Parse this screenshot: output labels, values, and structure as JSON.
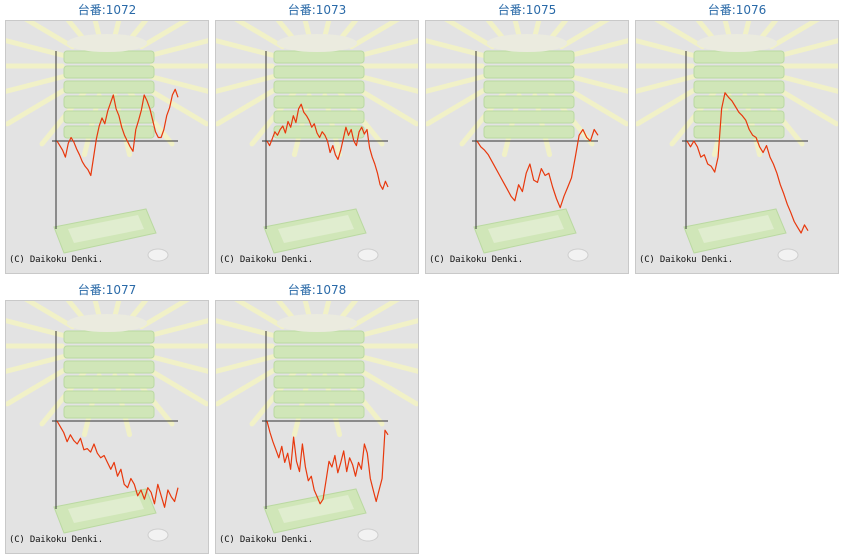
{
  "colors": {
    "title": "#2a6aa8",
    "line": "#e8380d",
    "axis": "#333333",
    "background": "#e3e3e3"
  },
  "chart_data": [
    {
      "type": "line",
      "title": "台番:1072",
      "footer": "(C) Daikoku Denki.",
      "values": [
        0,
        -4,
        -8,
        -14,
        -2,
        3,
        -1,
        -7,
        -12,
        -18,
        -22,
        -25,
        -30,
        -14,
        2,
        13,
        20,
        15,
        26,
        33,
        40,
        28,
        22,
        12,
        5,
        0,
        -5,
        -9,
        10,
        18,
        27,
        40,
        35,
        28,
        18,
        8,
        3,
        3,
        10,
        22,
        29,
        40,
        45,
        38
      ]
    },
    {
      "type": "line",
      "title": "台番:1073",
      "footer": "(C) Daikoku Denki.",
      "values": [
        0,
        -4,
        2,
        8,
        5,
        10,
        13,
        7,
        17,
        12,
        22,
        16,
        28,
        32,
        25,
        22,
        18,
        12,
        15,
        7,
        3,
        8,
        5,
        0,
        -10,
        -4,
        -12,
        -16,
        -8,
        2,
        12,
        5,
        10,
        0,
        -4,
        8,
        12,
        6,
        10,
        -6,
        -14,
        -20,
        -28,
        -38,
        -42,
        -35,
        -40
      ]
    },
    {
      "type": "line",
      "title": "台番:1075",
      "footer": "(C) Daikoku Denki.",
      "values": [
        0,
        -5,
        -8,
        -12,
        -18,
        -24,
        -30,
        -36,
        -42,
        -48,
        -52,
        -38,
        -44,
        -28,
        -20,
        -34,
        -36,
        -24,
        -30,
        -28,
        -40,
        -50,
        -58,
        -48,
        -40,
        -32,
        -14,
        5,
        10,
        3,
        0,
        10,
        5
      ]
    },
    {
      "type": "line",
      "title": "台番:1076",
      "footer": "(C) Daikoku Denki.",
      "values": [
        0,
        -5,
        0,
        -5,
        -14,
        -12,
        -20,
        -22,
        -27,
        -14,
        28,
        42,
        38,
        35,
        30,
        25,
        22,
        18,
        10,
        5,
        3,
        -5,
        -10,
        -4,
        -14,
        -20,
        -28,
        -38,
        -46,
        -55,
        -62,
        -70,
        -75,
        -80,
        -73,
        -78
      ]
    },
    {
      "type": "line",
      "title": "台番:1077",
      "footer": "(C) Daikoku Denki.",
      "values": [
        0,
        -5,
        -10,
        -18,
        -12,
        -17,
        -20,
        -15,
        -25,
        -24,
        -27,
        -20,
        -28,
        -32,
        -30,
        -36,
        -42,
        -36,
        -48,
        -42,
        -55,
        -58,
        -50,
        -55,
        -65,
        -60,
        -68,
        -58,
        -62,
        -72,
        -55,
        -65,
        -75,
        -60,
        -66,
        -70,
        -58
      ]
    },
    {
      "type": "line",
      "title": "台番:1078",
      "footer": "(C) Daikoku Denki.",
      "values": [
        0,
        -10,
        -18,
        -25,
        -32,
        -22,
        -36,
        -28,
        -42,
        -14,
        -35,
        -44,
        -20,
        -40,
        -52,
        -48,
        -60,
        -66,
        -72,
        -68,
        -52,
        -35,
        -40,
        -30,
        -45,
        -36,
        -26,
        -44,
        -32,
        -38,
        -48,
        -36,
        -42,
        -20,
        -28,
        -50,
        -60,
        -70,
        -60,
        -50,
        -8,
        -12
      ]
    }
  ]
}
